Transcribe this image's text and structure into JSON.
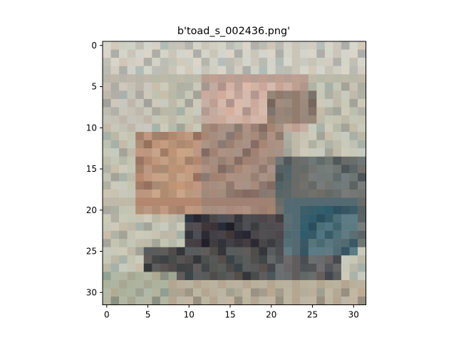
{
  "window": {
    "background": "#ffffff"
  },
  "chart_data": {
    "type": "heatmap",
    "title": "b'toad_s_002436.png'",
    "xlabel": "",
    "ylabel": "",
    "x_ticks": [
      0,
      5,
      10,
      15,
      20,
      25,
      30
    ],
    "y_ticks": [
      0,
      5,
      10,
      15,
      20,
      25,
      30
    ],
    "xlim": [
      -0.5,
      31.5
    ],
    "ylim": [
      31.5,
      -0.5
    ],
    "grid": false,
    "legend": "none",
    "image_shape": [
      32,
      32
    ],
    "color_regions": [
      {
        "rows": [
          0,
          31
        ],
        "cols": [
          0,
          31
        ],
        "color": "#c8c9b8"
      },
      {
        "rows": [
          0,
          3
        ],
        "cols": [
          0,
          31
        ],
        "color": "#d7d7cc"
      },
      {
        "rows": [
          4,
          10
        ],
        "cols": [
          0,
          5
        ],
        "color": "#c9c6bb"
      },
      {
        "rows": [
          4,
          10
        ],
        "cols": [
          12,
          24
        ],
        "color": "#c8a79b"
      },
      {
        "rows": [
          5,
          11
        ],
        "cols": [
          14,
          20
        ],
        "color": "#d9b5a7"
      },
      {
        "rows": [
          6,
          9
        ],
        "cols": [
          20,
          25
        ],
        "color": "#8f7a6c"
      },
      {
        "rows": [
          11,
          20
        ],
        "cols": [
          4,
          12
        ],
        "color": "#b8896d"
      },
      {
        "rows": [
          12,
          18
        ],
        "cols": [
          6,
          10
        ],
        "color": "#c79877"
      },
      {
        "rows": [
          10,
          21
        ],
        "cols": [
          12,
          21
        ],
        "color": "#a08172"
      },
      {
        "rows": [
          14,
          24
        ],
        "cols": [
          21,
          31
        ],
        "color": "#5a6566"
      },
      {
        "rows": [
          19,
          25
        ],
        "cols": [
          22,
          30
        ],
        "color": "#3d6472"
      },
      {
        "rows": [
          20,
          23
        ],
        "cols": [
          24,
          28
        ],
        "color": "#2f5c6c"
      },
      {
        "rows": [
          21,
          27
        ],
        "cols": [
          10,
          21
        ],
        "color": "#2b2a33"
      },
      {
        "rows": [
          22,
          24
        ],
        "cols": [
          12,
          16
        ],
        "color": "#1e1d28"
      },
      {
        "rows": [
          25,
          29
        ],
        "cols": [
          5,
          20
        ],
        "color": "#3a3d3f"
      },
      {
        "rows": [
          26,
          29
        ],
        "cols": [
          20,
          28
        ],
        "color": "#4e5357"
      },
      {
        "rows": [
          28,
          31
        ],
        "cols": [
          0,
          8
        ],
        "color": "#aab29c"
      },
      {
        "rows": [
          29,
          31
        ],
        "cols": [
          8,
          31
        ],
        "color": "#b9b09a"
      }
    ],
    "pixel_shades": [
      "#d7d6c8",
      "#c8c9b8",
      "#bfc2b0",
      "#b7bbb0",
      "#c9c6bb",
      "#c8a79b",
      "#d9b5a7",
      "#e3cabd",
      "#a4907f",
      "#8f7a6c",
      "#b8896d",
      "#c79877",
      "#9d8676",
      "#a08172",
      "#6e6a64",
      "#5a6566",
      "#3d6472",
      "#2f5c6c",
      "#2b2a33",
      "#1e1d28",
      "#3a3d3f",
      "#4e5357",
      "#aab29c",
      "#b9b09a",
      "#9aa89a",
      "#c5ccd2",
      "#8d9a8e",
      "#d8d0c2",
      "#7a7f73",
      "#5f5b59"
    ]
  }
}
